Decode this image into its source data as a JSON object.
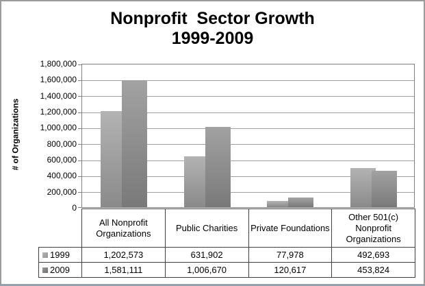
{
  "title": {
    "line1": "Nonprofit  Sector Growth",
    "line2": "1999-2009"
  },
  "y_axis": {
    "title": "# of Organizations",
    "tick_step": 200000,
    "tick_labels": [
      "0",
      "200,000",
      "400,000",
      "600,000",
      "800,000",
      "1,000,000",
      "1,200,000",
      "1,400,000",
      "1,600,000",
      "1,800,000"
    ]
  },
  "chart_data": {
    "type": "bar",
    "title": "Nonprofit  Sector Growth 1999-2009",
    "xlabel": "",
    "ylabel": "# of Organizations",
    "ylim": [
      0,
      1800000
    ],
    "grid": true,
    "legend_position": "data-table-left",
    "categories": [
      "All Nonprofit Organizations",
      "Public Charities",
      "Private Foundations",
      "Other 501(c) Nonprofit Organizations"
    ],
    "series": [
      {
        "name": "1999",
        "values": [
          1202573,
          631902,
          77978,
          492693
        ],
        "color_top": "#b3b3b3",
        "color_bottom": "#8a8a8a",
        "swatch_top": "#b8b8b8",
        "swatch_bottom": "#929292"
      },
      {
        "name": "2009",
        "values": [
          1581111,
          1006670,
          120617,
          453824
        ],
        "color_top": "#a2a2a2",
        "color_bottom": "#797979",
        "swatch_top": "#9a9a9a",
        "swatch_bottom": "#6e6e6e"
      }
    ]
  },
  "data_table": {
    "rows": [
      {
        "label": "1999",
        "values": [
          "1,202,573",
          "631,902",
          "77,978",
          "492,693"
        ]
      },
      {
        "label": "2009",
        "values": [
          "1,581,111",
          "1,006,670",
          "120,617",
          "453,824"
        ]
      }
    ]
  }
}
